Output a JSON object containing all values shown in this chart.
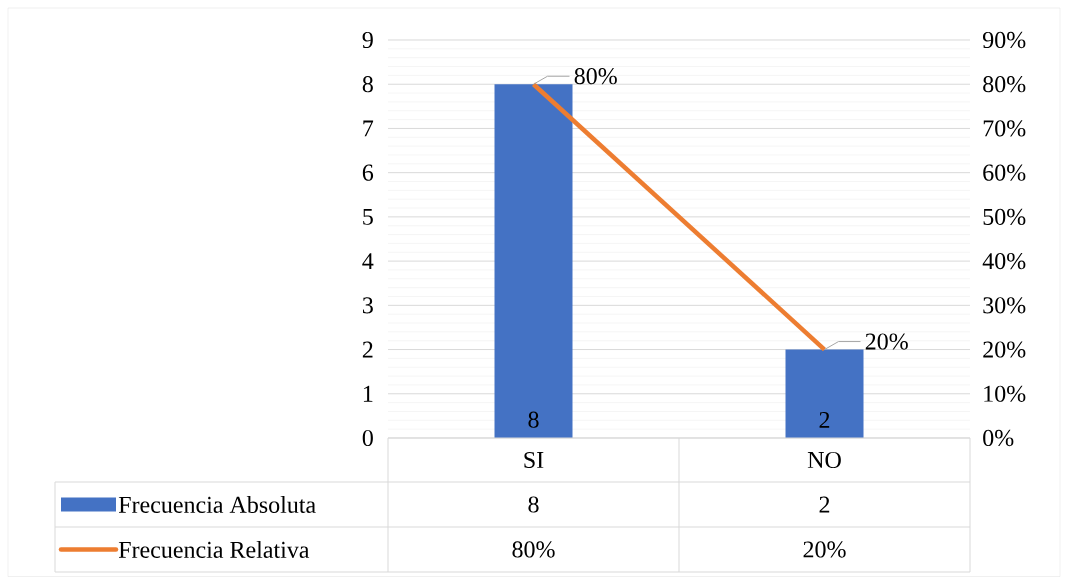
{
  "chart_data": {
    "type": "bar",
    "categories": [
      "SI",
      "NO"
    ],
    "series": [
      {
        "name": "Frecuencia Absoluta",
        "color": "#4472c4",
        "values": [
          8,
          2
        ],
        "value_labels": [
          "8",
          "2"
        ]
      },
      {
        "name": "Frecuencia Relativa",
        "type": "line",
        "axis": "y2",
        "color": "#ed7d31",
        "values": [
          80,
          20
        ],
        "value_labels": [
          "80%",
          "20%"
        ]
      }
    ],
    "ylim": [
      0,
      9
    ],
    "yticks": [
      0,
      1,
      2,
      3,
      4,
      5,
      6,
      7,
      8,
      9
    ],
    "y2lim": [
      0,
      90
    ],
    "y2ticks": [
      {
        "value": 0,
        "label": "0%"
      },
      {
        "value": 10,
        "label": "10%"
      },
      {
        "value": 20,
        "label": "20%"
      },
      {
        "value": 30,
        "label": "30%"
      },
      {
        "value": 40,
        "label": "40%"
      },
      {
        "value": 50,
        "label": "50%"
      },
      {
        "value": 60,
        "label": "60%"
      },
      {
        "value": 70,
        "label": "70%"
      },
      {
        "value": 80,
        "label": "80%"
      },
      {
        "value": 90,
        "label": "90%"
      }
    ],
    "grid": "y",
    "legend": "bottom",
    "marker": "none"
  }
}
